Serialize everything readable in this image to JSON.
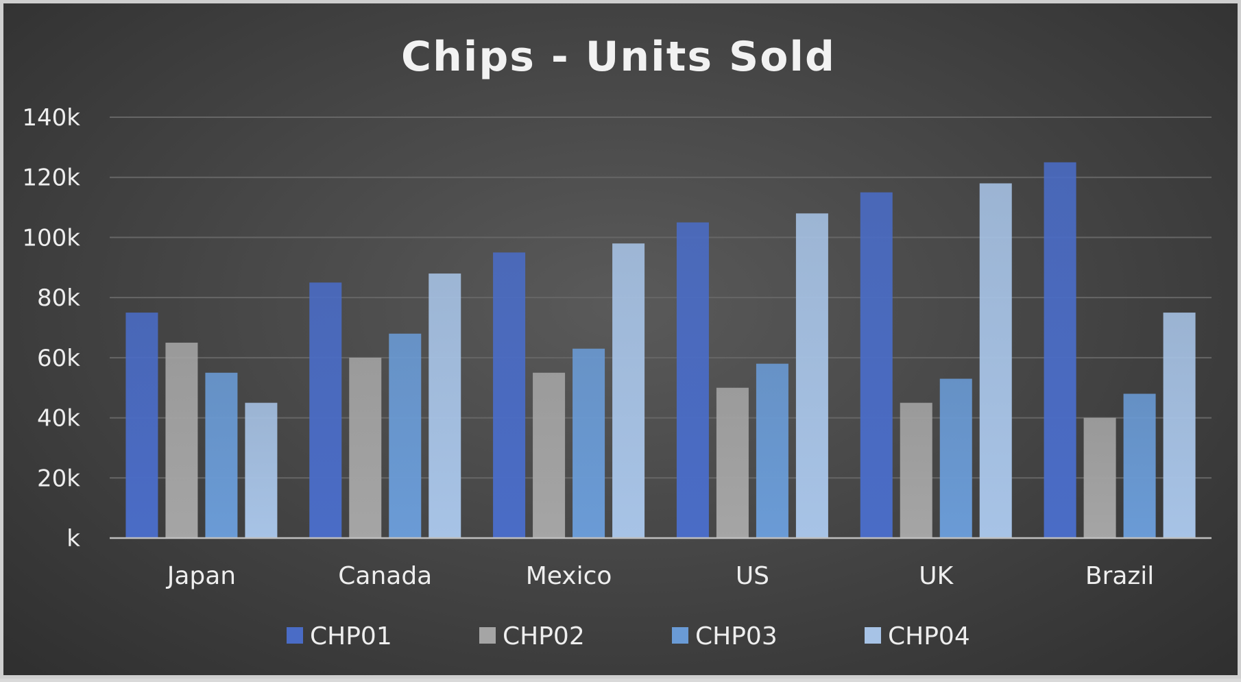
{
  "chart_data": {
    "type": "bar",
    "title": "Chips - Units Sold",
    "categories": [
      "Japan",
      "Canada",
      "Mexico",
      "US",
      "UK",
      "Brazil"
    ],
    "series": [
      {
        "name": "CHP01",
        "values": [
          75000,
          85000,
          95000,
          105000,
          115000,
          125000
        ]
      },
      {
        "name": "CHP02",
        "values": [
          65000,
          60000,
          55000,
          50000,
          45000,
          40000
        ]
      },
      {
        "name": "CHP03",
        "values": [
          55000,
          68000,
          63000,
          58000,
          53000,
          48000
        ]
      },
      {
        "name": "CHP04",
        "values": [
          45000,
          88000,
          98000,
          108000,
          118000,
          75000
        ]
      }
    ],
    "ylim": [
      0,
      140000
    ],
    "yticks": [
      0,
      20000,
      40000,
      60000,
      80000,
      100000,
      120000,
      140000
    ],
    "ytick_labels": [
      "k",
      "20k",
      "40k",
      "60k",
      "80k",
      "100k",
      "120k",
      "140k"
    ],
    "grid": true,
    "legend_position": "bottom"
  },
  "colors": {
    "CHP01": "#4a6cc6",
    "CHP02": "#a5a5a5",
    "CHP03": "#6a9bd6",
    "CHP04": "#a7c3e6",
    "grid": "#666666",
    "axis": "#bfbfbf"
  }
}
